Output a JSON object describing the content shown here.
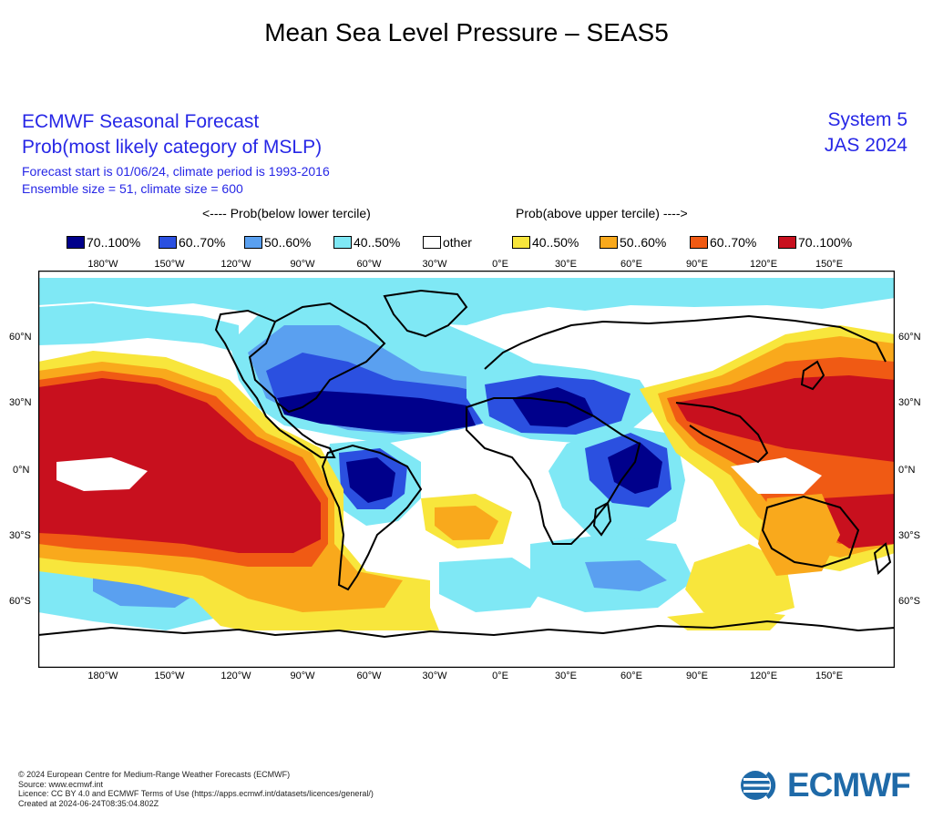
{
  "title": "Mean Sea Level Pressure – SEAS5",
  "header": {
    "main": "ECMWF Seasonal Forecast",
    "sub": "Prob(most likely category of MSLP)",
    "line3": "Forecast start is 01/06/24, climate period is 1993-2016",
    "line4": "Ensemble size = 51, climate size = 600",
    "system": "System 5",
    "period": "JAS 2024"
  },
  "legend": {
    "below_caption": "<---- Prob(below lower tercile)",
    "above_caption": "Prob(above upper tercile) ---->",
    "items": [
      {
        "label": "70..100%",
        "color": "#00008b"
      },
      {
        "label": "60..70%",
        "color": "#2b50e0"
      },
      {
        "label": "50..60%",
        "color": "#5aa0f0"
      },
      {
        "label": "40..50%",
        "color": "#7fe8f5"
      },
      {
        "label": "other",
        "color": "#ffffff"
      },
      {
        "label": "40..50%",
        "color": "#f8e63c"
      },
      {
        "label": "50..60%",
        "color": "#f9a91c"
      },
      {
        "label": "60..70%",
        "color": "#f05a14"
      },
      {
        "label": "70..100%",
        "color": "#c8101e"
      }
    ]
  },
  "axes": {
    "lon_labels": [
      "180°W",
      "150°W",
      "120°W",
      "90°W",
      "60°W",
      "30°W",
      "0°E",
      "30°E",
      "60°E",
      "90°E",
      "120°E",
      "150°E"
    ],
    "lat_labels": [
      "60°N",
      "30°N",
      "0°N",
      "30°S",
      "60°S"
    ]
  },
  "footer": {
    "line1": "© 2024 European Centre for Medium-Range Weather Forecasts (ECMWF)",
    "line2": "Source: www.ecmwf.int",
    "line3": "Licence: CC BY 4.0 and ECMWF Terms of Use (https://apps.ecmwf.int/datasets/licences/general/)",
    "line4": "Created at 2024-06-24T08:35:04.802Z"
  },
  "logo": {
    "text": "ECMWF",
    "color": "#1f6aa8"
  }
}
